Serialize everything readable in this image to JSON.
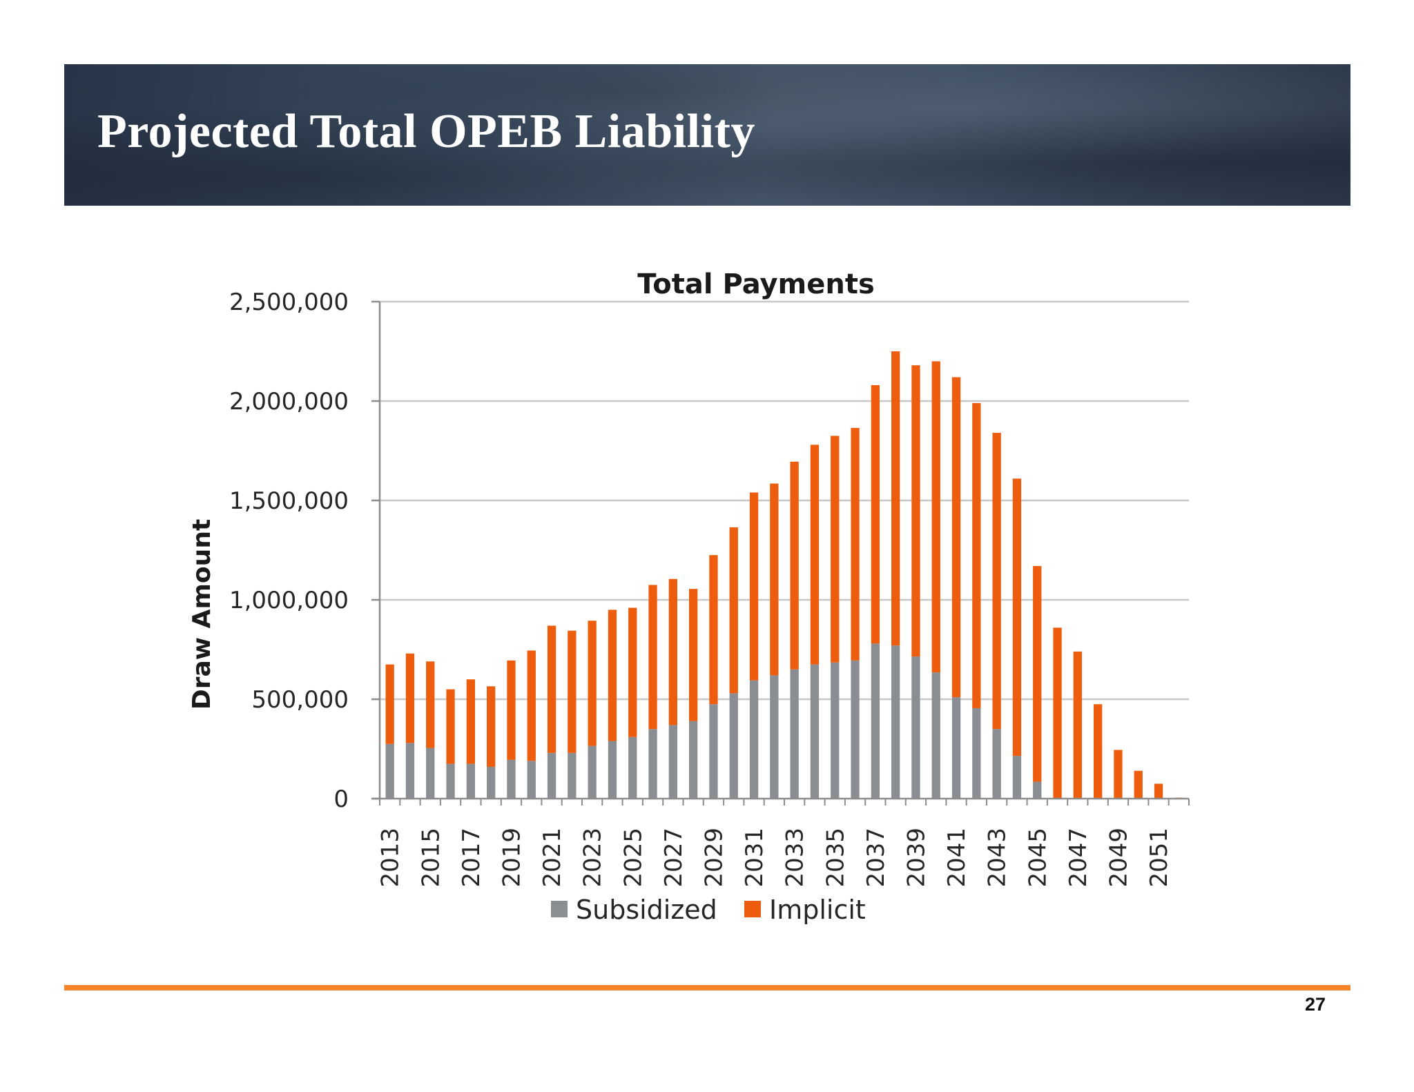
{
  "slide": {
    "title": "Projected Total OPEB Liability",
    "page_number": "27"
  },
  "colors": {
    "banner": "#33425a",
    "accent_rule": "#f6842a",
    "subsidized": "#8a8e92",
    "implicit": "#ee5d0d",
    "gridline": "#c8c8c8",
    "axis": "#8c8c8c"
  },
  "chart_data": {
    "type": "bar",
    "stacked": true,
    "title": "Total Payments",
    "xlabel": "",
    "ylabel": "Draw Amount",
    "ylim": [
      0,
      2500000
    ],
    "yticks": [
      0,
      500000,
      1000000,
      1500000,
      2000000,
      2500000
    ],
    "ytick_labels": [
      "0",
      "500,000",
      "1,000,000",
      "1,500,000",
      "2,000,000",
      "2,500,000"
    ],
    "grid": true,
    "legend_position": "bottom",
    "categories": [
      "2013",
      "2014",
      "2015",
      "2016",
      "2017",
      "2018",
      "2019",
      "2020",
      "2021",
      "2022",
      "2023",
      "2024",
      "2025",
      "2026",
      "2027",
      "2028",
      "2029",
      "2030",
      "2031",
      "2032",
      "2033",
      "2034",
      "2035",
      "2036",
      "2037",
      "2038",
      "2039",
      "2040",
      "2041",
      "2042",
      "2043",
      "2044",
      "2045",
      "2046",
      "2047",
      "2048",
      "2049",
      "2050",
      "2051",
      "2052"
    ],
    "xtick_labels": [
      "2013",
      "2015",
      "2017",
      "2019",
      "2021",
      "2023",
      "2025",
      "2027",
      "2029",
      "2031",
      "2033",
      "2035",
      "2037",
      "2039",
      "2041",
      "2043",
      "2045",
      "2047",
      "2049",
      "2051"
    ],
    "series": [
      {
        "name": "Subsidized",
        "color": "#8a8e92",
        "values": [
          275000,
          280000,
          255000,
          175000,
          175000,
          160000,
          195000,
          190000,
          230000,
          230000,
          265000,
          290000,
          310000,
          350000,
          370000,
          390000,
          475000,
          530000,
          595000,
          620000,
          650000,
          675000,
          685000,
          695000,
          780000,
          770000,
          715000,
          635000,
          510000,
          455000,
          350000,
          215000,
          85000,
          0,
          0,
          0,
          0,
          0,
          0,
          0
        ]
      },
      {
        "name": "Implicit",
        "color": "#ee5d0d",
        "values": [
          400000,
          450000,
          435000,
          375000,
          425000,
          405000,
          500000,
          555000,
          640000,
          615000,
          630000,
          660000,
          650000,
          725000,
          735000,
          665000,
          750000,
          835000,
          945000,
          965000,
          1045000,
          1105000,
          1140000,
          1170000,
          1300000,
          1480000,
          1465000,
          1565000,
          1610000,
          1535000,
          1490000,
          1395000,
          1085000,
          860000,
          740000,
          475000,
          245000,
          140000,
          75000,
          5000
        ]
      }
    ]
  }
}
